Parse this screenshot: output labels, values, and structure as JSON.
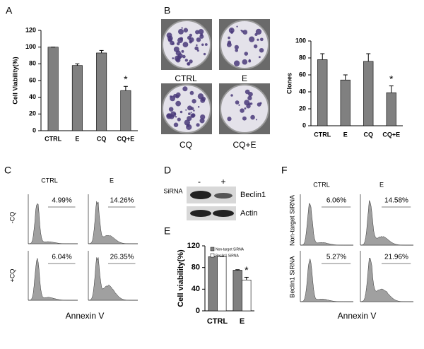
{
  "chart_data": [
    {
      "type": "bar",
      "y_label": "Cell Viability(%)",
      "categories": [
        "CTRL",
        "E",
        "CQ",
        "CQ+E"
      ],
      "series": [
        {
          "color": "#808080",
          "values": [
            100,
            78,
            93,
            48
          ],
          "errors": [
            0,
            2,
            3,
            5
          ]
        }
      ],
      "ylim": [
        0,
        120
      ],
      "yticks": [
        0,
        20,
        40,
        60,
        80,
        100,
        120
      ],
      "annotation": "*"
    },
    {
      "type": "bar",
      "y_label": "Clones",
      "categories": [
        "CTRL",
        "E",
        "CQ",
        "CQ+E"
      ],
      "series": [
        {
          "color": "#808080",
          "values": [
            78,
            54,
            76,
            39
          ],
          "errors": [
            7,
            6,
            9,
            8
          ]
        }
      ],
      "ylim": [
        0,
        100
      ],
      "yticks": [
        0,
        20,
        40,
        60,
        80,
        100
      ],
      "annotation": "*"
    },
    {
      "type": "bar",
      "y_label": "Cell viability(%)",
      "categories": [
        "CTRL",
        "E"
      ],
      "series": [
        {
          "name": "Non-target SiRNA",
          "color": "#808080",
          "values": [
            100,
            75
          ],
          "errors": [
            0,
            1
          ]
        },
        {
          "name": "Beclin1 SiRNA",
          "color": "#ffffff",
          "values": [
            100,
            57
          ],
          "errors": [
            0,
            5
          ]
        }
      ],
      "ylim": [
        0,
        120
      ],
      "yticks": [
        0,
        40,
        80,
        120
      ],
      "annotation": "*"
    }
  ],
  "panel_labels": [
    "A",
    "B",
    "C",
    "D",
    "E",
    "F"
  ],
  "colony_labels": [
    "CTRL",
    "E",
    "CQ",
    "CQ+E"
  ],
  "panel_c": {
    "columns": [
      "CTRL",
      "E"
    ],
    "rows": [
      "-CQ",
      "+CQ"
    ],
    "percentages": [
      "4.99%",
      "14.26%",
      "6.04%",
      "26.35%"
    ],
    "x_label": "Annexin V"
  },
  "panel_d": {
    "lanes": [
      "-",
      "+"
    ],
    "treatment": "SiRNA",
    "bands": [
      "Beclin1",
      "Actin"
    ]
  },
  "panel_f": {
    "columns": [
      "CTRL",
      "E"
    ],
    "rows": [
      "Non-target SiRNA",
      "Beclin1 SiRNA"
    ],
    "percentages": [
      "6.06%",
      "14.58%",
      "5.27%",
      "21.96%"
    ],
    "x_label": "Annexin V"
  }
}
